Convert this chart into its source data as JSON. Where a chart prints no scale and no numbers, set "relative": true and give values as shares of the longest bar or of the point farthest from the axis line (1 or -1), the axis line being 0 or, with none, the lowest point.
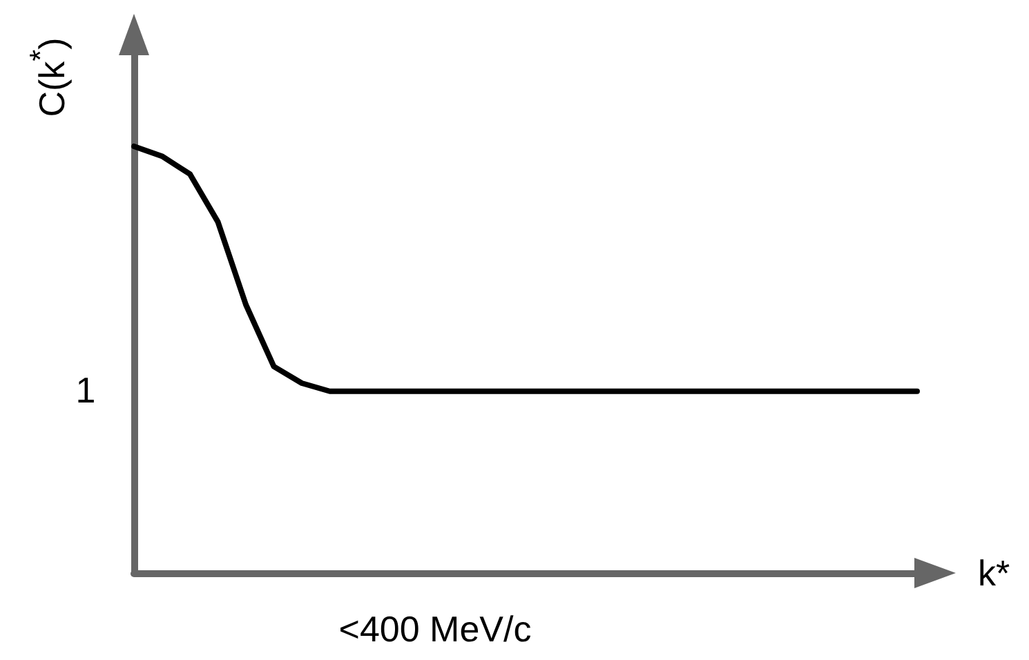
{
  "chart_data": {
    "type": "line",
    "relative": true,
    "xlabel": "k*",
    "ylabel": "C(k$^{*}$)",
    "categories": [
      null,
      null,
      null,
      null,
      null,
      null,
      null,
      null,
      null,
      null,
      null,
      null,
      null,
      null,
      null,
      null,
      null,
      null,
      null,
      null,
      null,
      null,
      null,
      null,
      null,
      null,
      null,
      null,
      null
    ],
    "series": [
      {
        "color": "#000000",
        "values": [
          1.0,
          0.977,
          0.935,
          0.823,
          0.629,
          0.484,
          0.445,
          0.426,
          0.426,
          0.426,
          0.426,
          0.426,
          0.426,
          0.426,
          0.426,
          0.426,
          0.426,
          0.426,
          0.426,
          0.426,
          0.426,
          0.426,
          0.426,
          0.426,
          0.426,
          0.426,
          0.426,
          0.426,
          0.426
        ]
      }
    ],
    "annotations": [
      "1",
      "<400 MeV/c"
    ],
    "grid": false,
    "marker": "none",
    "line_style": "solid"
  }
}
